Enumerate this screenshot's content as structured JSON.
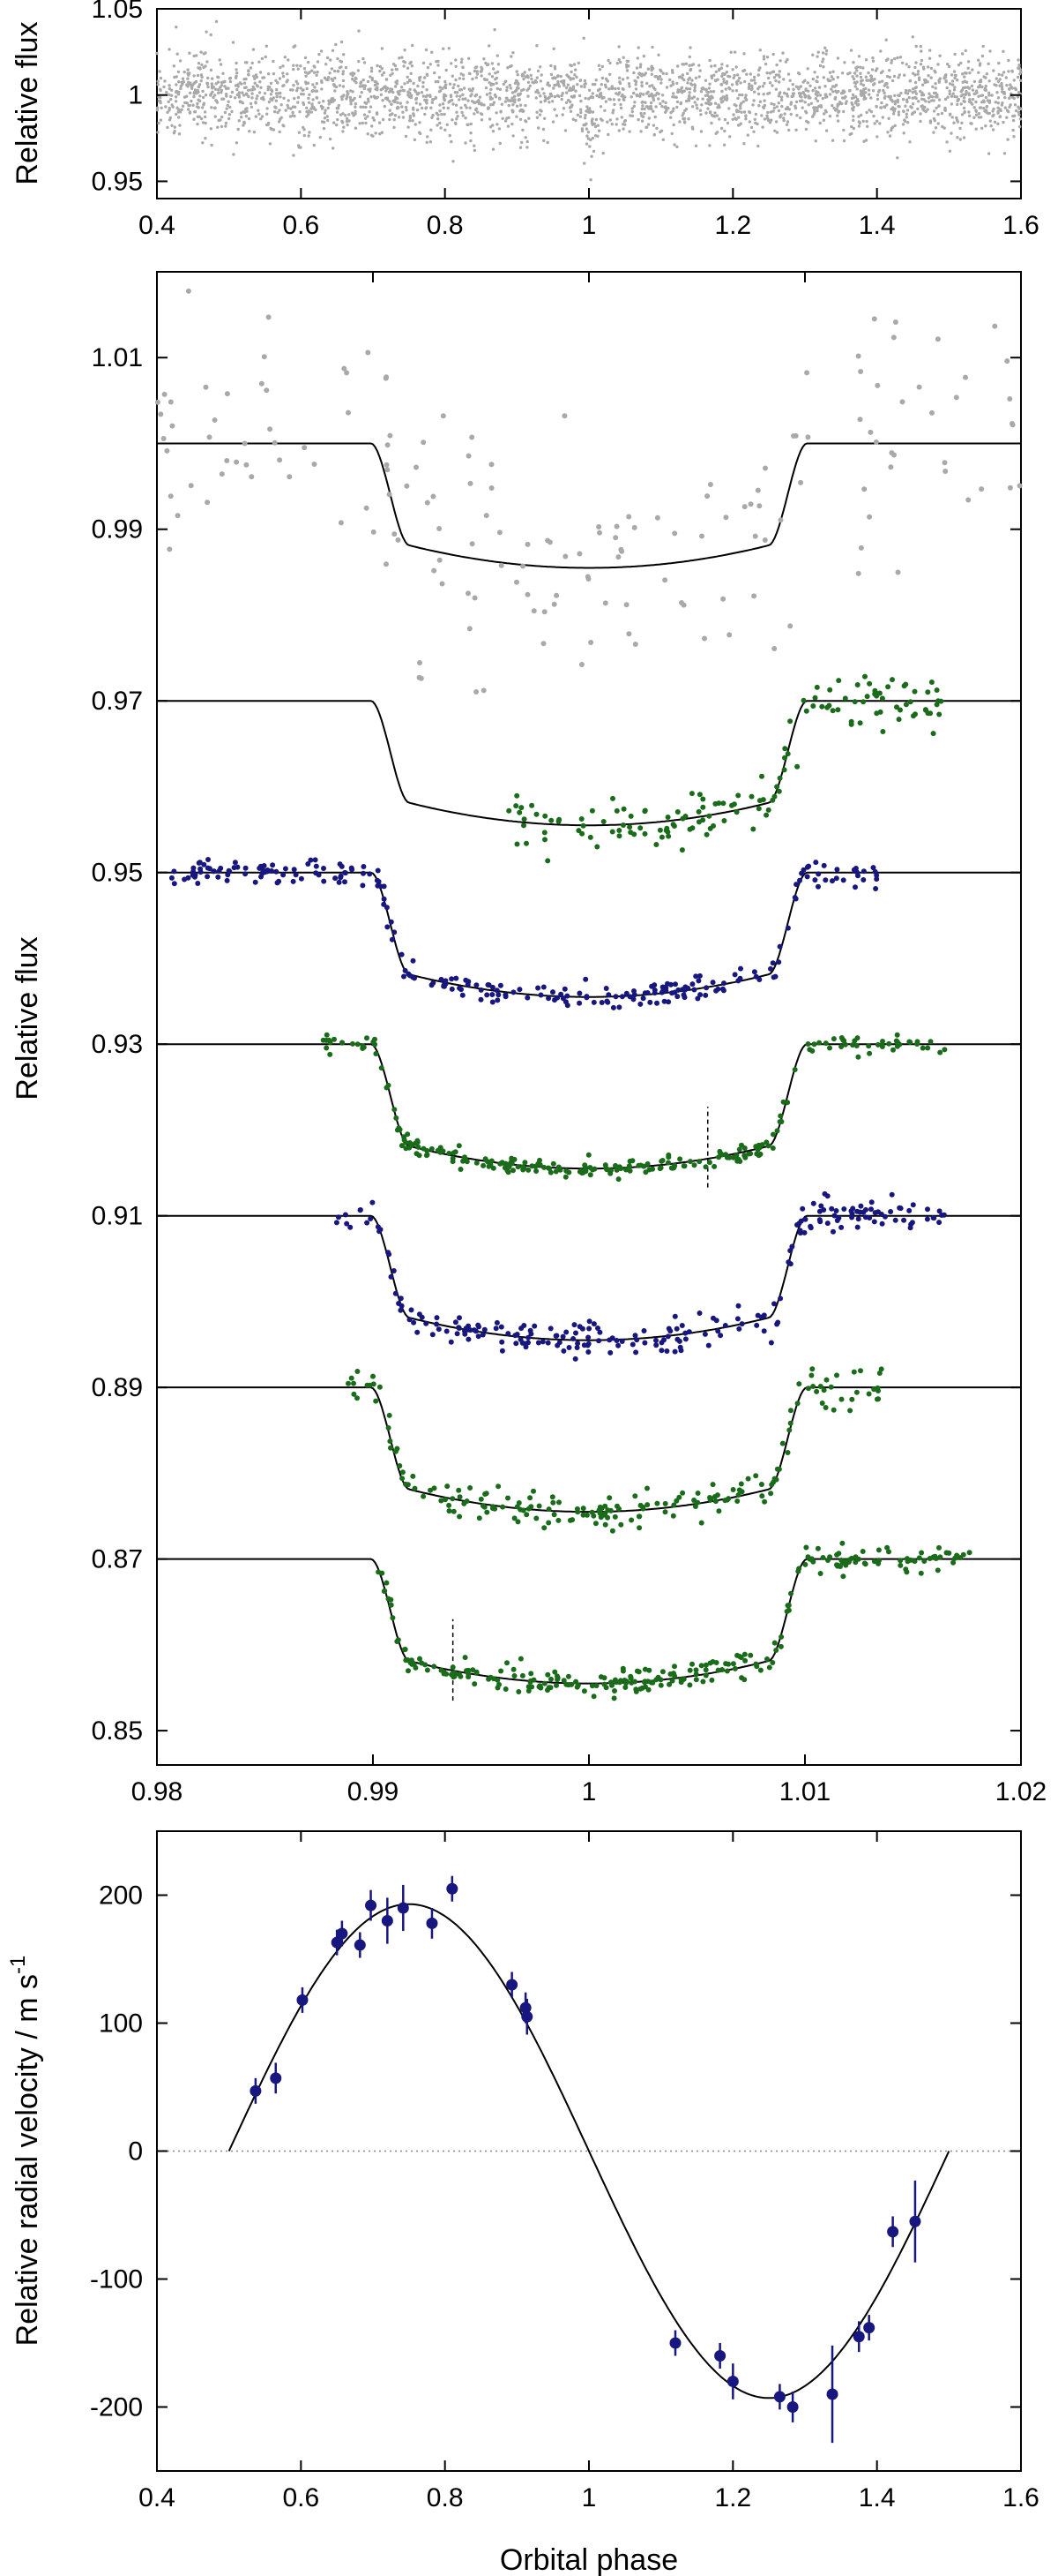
{
  "colors": {
    "grey": "#a9a9a9",
    "green": "#1a6b1a",
    "blue": "#17177f",
    "model": "#000000"
  },
  "chart_data": [
    {
      "type": "scatter",
      "panel": "top",
      "title": "",
      "xlabel": "",
      "ylabel": "Relative flux",
      "xlim": [
        0.4,
        1.6
      ],
      "ylim": [
        0.94,
        1.05
      ],
      "xticks": [
        "0.4",
        "0.6",
        "0.8",
        "1",
        "1.2",
        "1.4",
        "1.6"
      ],
      "yticks": [
        "0.95",
        "1",
        "1.05"
      ],
      "series": [
        {
          "color": "grey",
          "x_range": [
            0.4,
            1.6
          ],
          "center": 1.0,
          "scatter": 0.012,
          "transit_depth": 0.015,
          "transit_window": [
            0.99,
            1.01
          ],
          "n_points": 2600
        }
      ]
    },
    {
      "type": "scatter",
      "panel": "middle",
      "title": "",
      "xlabel": "",
      "ylabel": "Relative flux",
      "xlim": [
        0.98,
        1.02
      ],
      "ylim": [
        0.846,
        1.02
      ],
      "xticks": [
        "0.98",
        "0.99",
        "1",
        "1.01",
        "1.02"
      ],
      "yticks": [
        "0.85",
        "0.87",
        "0.89",
        "0.91",
        "0.93",
        "0.95",
        "0.97",
        "0.99",
        "1.01"
      ],
      "model": {
        "depth": 0.0145,
        "t1": 0.9899,
        "t2": 0.9917,
        "t3": 1.0083,
        "t4": 1.0101
      },
      "series": [
        {
          "color": "grey",
          "baseline": 1.0,
          "x_range": [
            0.98,
            1.02
          ],
          "scatter": 0.0075,
          "n_points": 170
        },
        {
          "color": "green",
          "baseline": 0.97,
          "x_range": [
            0.996,
            1.0165
          ],
          "scatter": 0.0016,
          "n_points": 150
        },
        {
          "color": "blue",
          "baseline": 0.95,
          "x_range": [
            0.9805,
            1.0135
          ],
          "scatter": 0.0007,
          "n_points": 260
        },
        {
          "color": "green",
          "baseline": 0.93,
          "x_range": [
            0.9875,
            1.0165
          ],
          "scatter": 0.00055,
          "n_points": 250
        },
        {
          "color": "blue",
          "baseline": 0.91,
          "x_range": [
            0.9883,
            1.0165
          ],
          "scatter": 0.001,
          "n_points": 230
        },
        {
          "color": "green",
          "baseline": 0.89,
          "x_range": [
            0.9888,
            1.0137
          ],
          "scatter": 0.0011,
          "n_points": 190
        },
        {
          "color": "green",
          "baseline": 0.87,
          "x_range": [
            0.9902,
            1.0178
          ],
          "scatter": 0.0008,
          "n_points": 260
        }
      ],
      "markers": [
        {
          "x": 1.0055,
          "y_range": [
            0.9133,
            0.9227
          ]
        },
        {
          "x": 0.9937,
          "y_range": [
            0.8535,
            0.863
          ]
        }
      ]
    },
    {
      "type": "scatter",
      "panel": "bottom",
      "title": "",
      "xlabel": "Orbital phase",
      "ylabel": "Relative radial velocity / m s",
      "ylabel_superscript": "-1",
      "xlim": [
        0.4,
        1.6
      ],
      "ylim": [
        -250,
        250
      ],
      "xticks": [
        "0.4",
        "0.6",
        "0.8",
        "1",
        "1.2",
        "1.4",
        "1.6"
      ],
      "yticks": [
        "-200",
        "-100",
        "0",
        "100",
        "200"
      ],
      "model": {
        "amplitude": 193,
        "phase_range": [
          0.5,
          1.5
        ]
      },
      "zero_line": 0,
      "series": [
        {
          "color": "blue",
          "points": [
            {
              "x": 0.537,
              "y": 47,
              "err": 10
            },
            {
              "x": 0.565,
              "y": 57,
              "err": 12
            },
            {
              "x": 0.602,
              "y": 118,
              "err": 10
            },
            {
              "x": 0.65,
              "y": 163,
              "err": 10
            },
            {
              "x": 0.657,
              "y": 170,
              "err": 10
            },
            {
              "x": 0.682,
              "y": 161,
              "err": 10
            },
            {
              "x": 0.697,
              "y": 192,
              "err": 12
            },
            {
              "x": 0.72,
              "y": 180,
              "err": 18
            },
            {
              "x": 0.742,
              "y": 190,
              "err": 18
            },
            {
              "x": 0.782,
              "y": 178,
              "err": 12
            },
            {
              "x": 0.81,
              "y": 205,
              "err": 10
            },
            {
              "x": 0.893,
              "y": 130,
              "err": 10
            },
            {
              "x": 0.912,
              "y": 112,
              "err": 12
            },
            {
              "x": 0.914,
              "y": 105,
              "err": 14
            },
            {
              "x": 1.12,
              "y": -150,
              "err": 10
            },
            {
              "x": 1.182,
              "y": -160,
              "err": 10
            },
            {
              "x": 1.2,
              "y": -180,
              "err": 14
            },
            {
              "x": 1.265,
              "y": -192,
              "err": 10
            },
            {
              "x": 1.283,
              "y": -200,
              "err": 12
            },
            {
              "x": 1.338,
              "y": -190,
              "err": 38
            },
            {
              "x": 1.375,
              "y": -145,
              "err": 12
            },
            {
              "x": 1.389,
              "y": -138,
              "err": 10
            },
            {
              "x": 1.422,
              "y": -63,
              "err": 12
            },
            {
              "x": 1.453,
              "y": -55,
              "err": 32
            }
          ]
        }
      ]
    }
  ]
}
